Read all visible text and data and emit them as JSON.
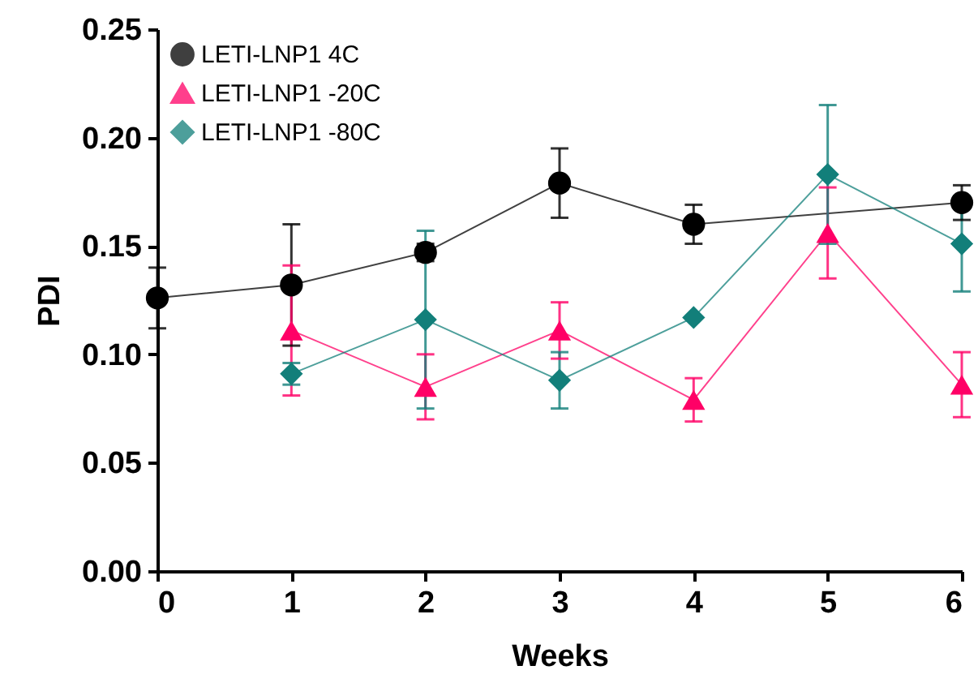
{
  "chart_data": {
    "type": "line",
    "xlabel": "Weeks",
    "ylabel": "PDI",
    "xlim": [
      0,
      6
    ],
    "xticks": [
      0,
      1,
      2,
      3,
      4,
      5,
      6
    ],
    "ylim": [
      0,
      0.25
    ],
    "yticks": [
      {
        "value": 0,
        "label": "0.00"
      },
      0.05,
      {
        "value": 0.1,
        "label": "0.10"
      },
      0.15,
      {
        "value": 0.2,
        "label": "0.20"
      },
      0.25
    ],
    "legend": "top left",
    "grid": false,
    "series": [
      {
        "name": "LETI-LNP1 4C",
        "color": "#000000",
        "marker": "circle",
        "x": [
          0,
          1,
          2,
          3,
          4,
          6
        ],
        "values": [
          0.126,
          0.132,
          0.147,
          0.179,
          0.16,
          0.17
        ],
        "errors": [
          0.014,
          0.028,
          0.004,
          0.016,
          0.009,
          0.008
        ]
      },
      {
        "name": "LETI-LNP1 -20C",
        "color": "#ff0066",
        "marker": "triangle",
        "x": [
          1,
          2,
          3,
          4,
          5,
          6
        ],
        "values": [
          0.111,
          0.085,
          0.111,
          0.079,
          0.156,
          0.086
        ],
        "errors": [
          0.03,
          0.015,
          0.013,
          0.01,
          0.021,
          0.015
        ]
      },
      {
        "name": "LETI-LNP1 -80C",
        "color": "#127f7a",
        "marker": "diamond",
        "x": [
          1,
          2,
          3,
          4,
          5,
          6
        ],
        "values": [
          0.091,
          0.116,
          0.088,
          0.117,
          0.183,
          0.151
        ],
        "errors": [
          0.005,
          0.041,
          0.013,
          null,
          0.032,
          0.022
        ]
      }
    ]
  }
}
